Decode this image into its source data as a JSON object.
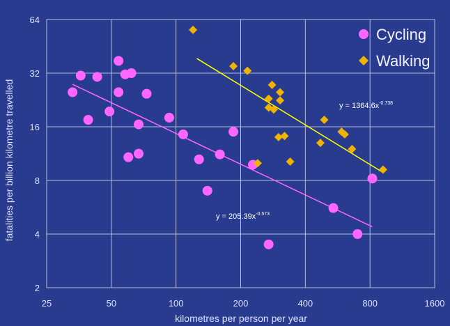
{
  "chart_data": {
    "type": "scatter",
    "title": "",
    "xlabel": "kilometres per person per year",
    "ylabel": "fatalities per billion kilometre travelled",
    "x_scale": "log2",
    "y_scale": "log2",
    "xlim": [
      25,
      1600
    ],
    "ylim": [
      2,
      64
    ],
    "x_ticks": [
      25,
      50,
      100,
      200,
      400,
      800,
      1600
    ],
    "y_ticks": [
      2,
      4,
      8,
      16,
      32,
      64
    ],
    "grid": true,
    "legend": "top-right",
    "colors": {
      "background": "#283b8f",
      "grid": "#b8bfd9",
      "cycling": "#ff66ff",
      "walking": "#f0b400",
      "cycling_trend": "#ff66ff",
      "walking_trend": "#ffff00"
    },
    "series": [
      {
        "name": "Cycling",
        "marker": "circle",
        "points": [
          [
            33,
            25
          ],
          [
            36,
            31
          ],
          [
            39,
            17.5
          ],
          [
            43,
            30.5
          ],
          [
            49,
            19.5
          ],
          [
            54,
            37.5
          ],
          [
            54,
            25
          ],
          [
            58,
            31.5
          ],
          [
            60,
            10.8
          ],
          [
            62,
            32
          ],
          [
            67,
            16.5
          ],
          [
            67,
            11.3
          ],
          [
            73,
            24.5
          ],
          [
            93,
            18
          ],
          [
            108,
            14.5
          ],
          [
            128,
            10.5
          ],
          [
            140,
            7
          ],
          [
            160,
            11.2
          ],
          [
            185,
            15
          ],
          [
            228,
            9.8
          ],
          [
            270,
            3.5
          ],
          [
            540,
            5.6
          ],
          [
            700,
            4
          ],
          [
            820,
            8.2
          ]
        ],
        "trend": {
          "equation_label": "y = 205.39x",
          "exponent_label": "-0.573",
          "a": 205.39,
          "b": -0.573,
          "x_range": [
            33,
            820
          ]
        }
      },
      {
        "name": "Walking",
        "marker": "diamond",
        "points": [
          [
            120,
            56
          ],
          [
            185,
            35
          ],
          [
            215,
            33
          ],
          [
            240,
            10
          ],
          [
            280,
            27.5
          ],
          [
            270,
            23
          ],
          [
            270,
            20.5
          ],
          [
            285,
            20
          ],
          [
            300,
            14
          ],
          [
            305,
            25
          ],
          [
            305,
            22.5
          ],
          [
            320,
            14.2
          ],
          [
            340,
            10.2
          ],
          [
            470,
            13
          ],
          [
            490,
            17.5
          ],
          [
            590,
            15
          ],
          [
            610,
            14.5
          ],
          [
            660,
            12
          ],
          [
            920,
            9.2
          ]
        ],
        "trend": {
          "equation_label": "y = 1364.6x",
          "exponent_label": "-0.738",
          "a": 1364.6,
          "b": -0.738,
          "x_range": [
            125,
            920
          ]
        }
      }
    ]
  }
}
